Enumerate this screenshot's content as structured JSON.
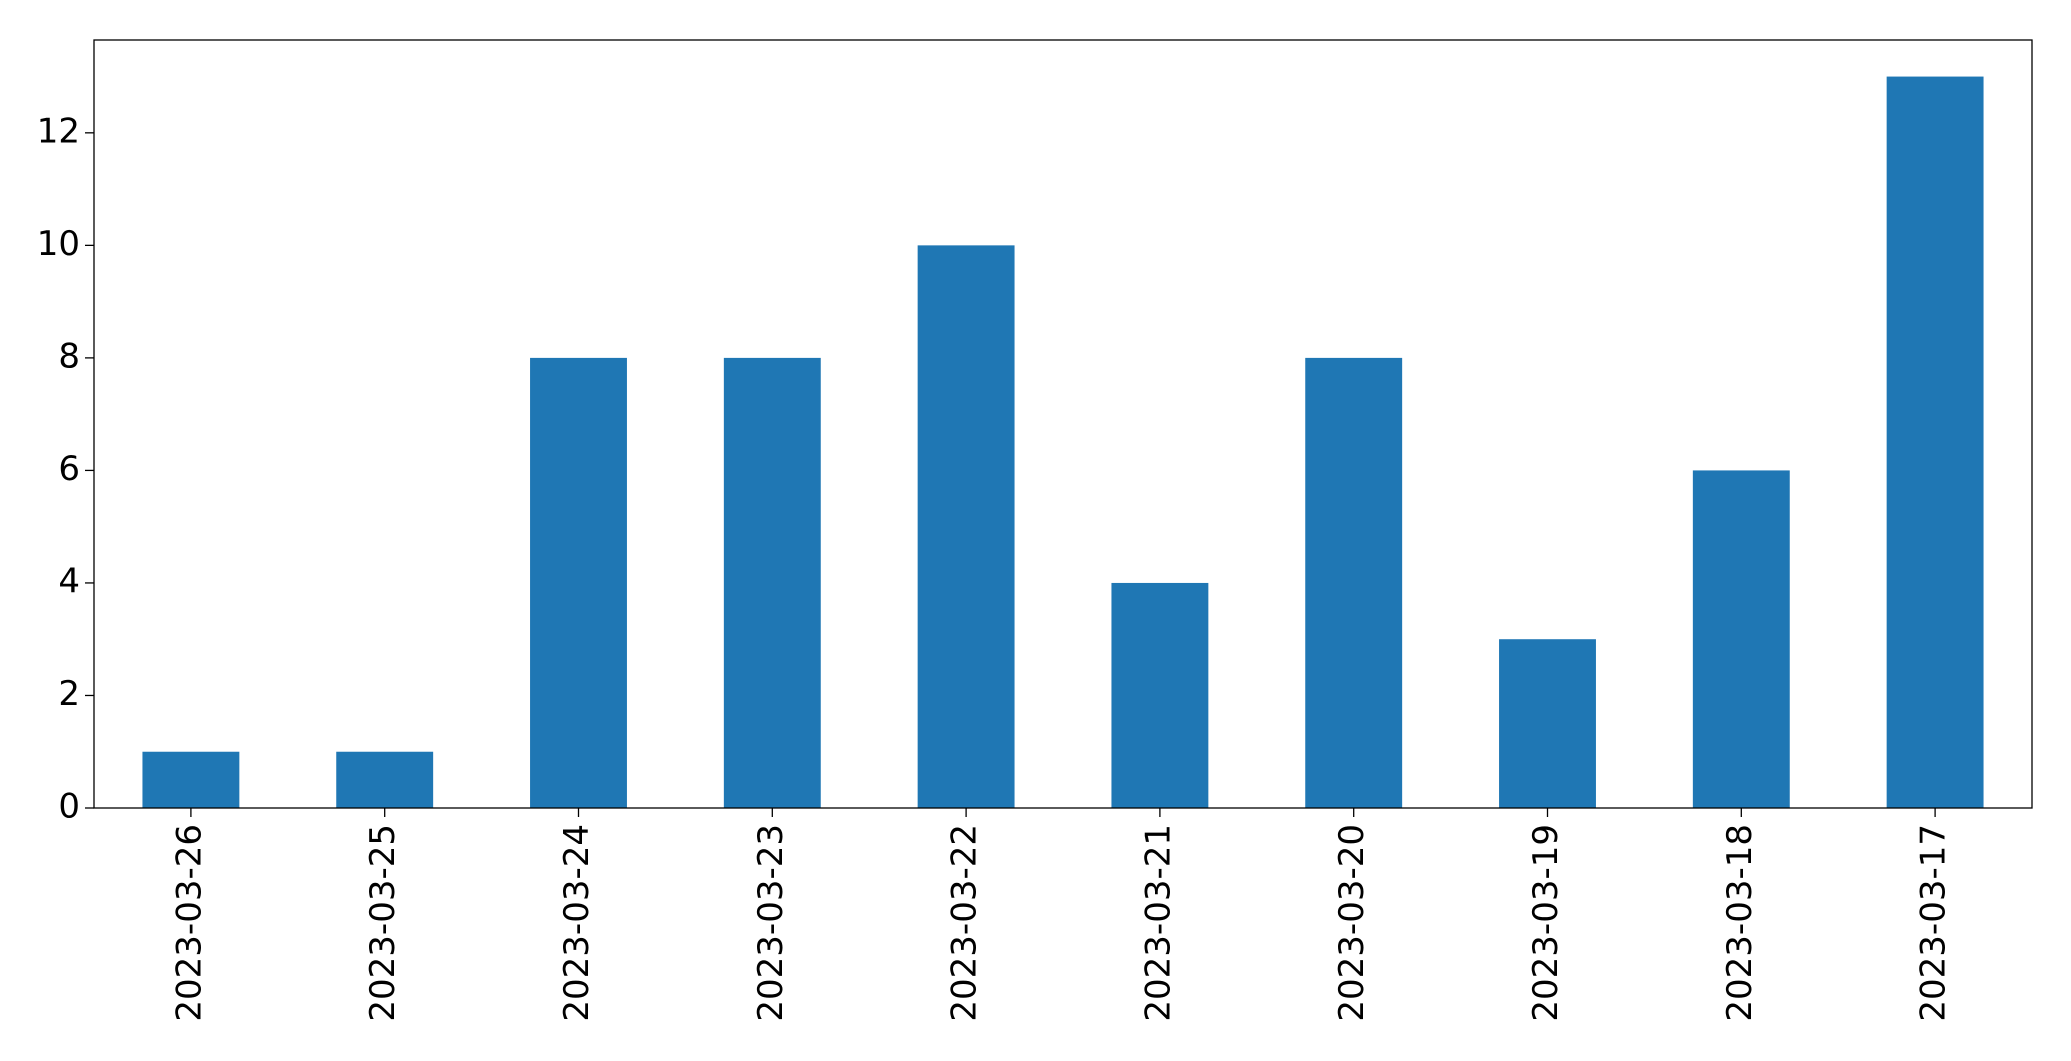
{
  "chart_data": {
    "type": "bar",
    "categories": [
      "2023-03-26",
      "2023-03-25",
      "2023-03-24",
      "2023-03-23",
      "2023-03-22",
      "2023-03-21",
      "2023-03-20",
      "2023-03-19",
      "2023-03-18",
      "2023-03-17"
    ],
    "values": [
      1,
      1,
      8,
      8,
      10,
      4,
      8,
      3,
      6,
      13
    ],
    "color": "#1f77b4",
    "ylim": [
      0,
      13.65
    ],
    "yticks": [
      0,
      2,
      4,
      6,
      8,
      10,
      12
    ],
    "grid": false
  }
}
